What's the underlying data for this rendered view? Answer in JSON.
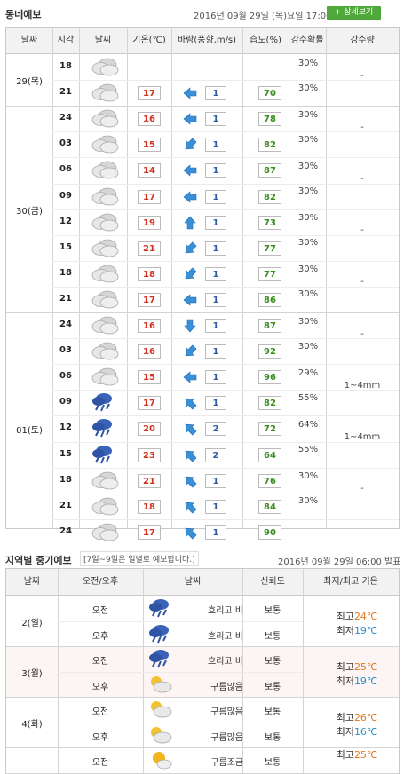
{
  "short_forecast": {
    "title": "동네예보",
    "issued": "2016년 09월 29일 (목)요일 17:00 발표",
    "detail_button": "+ 상세보기",
    "headers": [
      "날짜",
      "시각",
      "날씨",
      "기온(℃)",
      "바람(풍향,m/s)",
      "습도(%)",
      "강수확률",
      "강수량"
    ],
    "dates": [
      {
        "label": "29(목)",
        "rows": 2
      },
      {
        "label": "30(금)",
        "rows": 8
      },
      {
        "label": "01(토)",
        "rows": 9
      }
    ],
    "rows": [
      {
        "time": "18",
        "icon": "cloudy-icon",
        "temp": "",
        "dir": "",
        "wind": "",
        "hum": ""
      },
      {
        "time": "21",
        "icon": "cloudy-icon",
        "temp": "17",
        "dir": "left",
        "wind": "1",
        "hum": "70"
      },
      {
        "time": "24",
        "icon": "cloudy-icon",
        "temp": "16",
        "dir": "left",
        "wind": "1",
        "hum": "78"
      },
      {
        "time": "03",
        "icon": "cloudy-icon",
        "temp": "15",
        "dir": "downleft",
        "wind": "1",
        "hum": "82"
      },
      {
        "time": "06",
        "icon": "cloudy-icon",
        "temp": "14",
        "dir": "left",
        "wind": "1",
        "hum": "87"
      },
      {
        "time": "09",
        "icon": "cloudy-icon",
        "temp": "17",
        "dir": "left",
        "wind": "1",
        "hum": "82"
      },
      {
        "time": "12",
        "icon": "cloudy-icon",
        "temp": "19",
        "dir": "up",
        "wind": "1",
        "hum": "73"
      },
      {
        "time": "15",
        "icon": "cloudy-icon",
        "temp": "21",
        "dir": "downleft",
        "wind": "1",
        "hum": "77"
      },
      {
        "time": "18",
        "icon": "cloudy-icon",
        "temp": "18",
        "dir": "downleft",
        "wind": "1",
        "hum": "77"
      },
      {
        "time": "21",
        "icon": "cloudy-icon",
        "temp": "17",
        "dir": "left",
        "wind": "1",
        "hum": "86"
      },
      {
        "time": "24",
        "icon": "cloudy-icon",
        "temp": "16",
        "dir": "down",
        "wind": "1",
        "hum": "87"
      },
      {
        "time": "03",
        "icon": "cloudy-icon",
        "temp": "16",
        "dir": "downleft",
        "wind": "1",
        "hum": "92"
      },
      {
        "time": "06",
        "icon": "cloudy-icon",
        "temp": "15",
        "dir": "left",
        "wind": "1",
        "hum": "96"
      },
      {
        "time": "09",
        "icon": "rain-icon",
        "temp": "17",
        "dir": "upleft",
        "wind": "1",
        "hum": "82"
      },
      {
        "time": "12",
        "icon": "rain-icon",
        "temp": "20",
        "dir": "upleft",
        "wind": "2",
        "hum": "72"
      },
      {
        "time": "15",
        "icon": "rain-icon",
        "temp": "23",
        "dir": "upleft",
        "wind": "2",
        "hum": "64"
      },
      {
        "time": "18",
        "icon": "cloudy-icon",
        "temp": "21",
        "dir": "upleft",
        "wind": "1",
        "hum": "76"
      },
      {
        "time": "21",
        "icon": "cloudy-icon",
        "temp": "18",
        "dir": "upleft",
        "wind": "1",
        "hum": "84"
      },
      {
        "time": "24",
        "icon": "cloudy-icon",
        "temp": "17",
        "dir": "upleft",
        "wind": "1",
        "hum": "90"
      }
    ],
    "precip": [
      {
        "probs": [
          "30%",
          "30%"
        ],
        "amount": "-"
      },
      {
        "probs": [
          "30%",
          "30%"
        ],
        "amount": "-"
      },
      {
        "probs": [
          "30%",
          "30%"
        ],
        "amount": "-"
      },
      {
        "probs": [
          "30%",
          "30%"
        ],
        "amount": "-"
      },
      {
        "probs": [
          "30%",
          "30%"
        ],
        "amount": "-"
      },
      {
        "probs": [
          "30%",
          "30%"
        ],
        "amount": "-"
      },
      {
        "probs": [
          "29%",
          "55%"
        ],
        "amount": "1~4mm"
      },
      {
        "probs": [
          "64%",
          "55%"
        ],
        "amount": "1~4mm"
      },
      {
        "probs": [
          "30%",
          "30%"
        ],
        "amount": "-"
      }
    ]
  },
  "mid_forecast": {
    "title": "지역별 중기예보",
    "note": "[7일~9일은 일별로 예보합니다.]",
    "issued": "2016년 09월 29일 06:00 발표",
    "headers": [
      "날짜",
      "오전/오후",
      "날씨",
      "신뢰도",
      "최저/최고 기온"
    ],
    "days": [
      {
        "date": "2(일)",
        "high_label": "최고",
        "high": "24℃",
        "low_label": "최저",
        "low": "19℃",
        "slots": [
          {
            "period": "오전",
            "icon": "rain-icon",
            "weather": "흐리고 비",
            "reliability": "보통"
          },
          {
            "period": "오후",
            "icon": "rain-icon",
            "weather": "흐리고 비",
            "reliability": "보통"
          }
        ]
      },
      {
        "date": "3(월)",
        "high_label": "최고",
        "high": "25℃",
        "low_label": "최저",
        "low": "19℃",
        "slots": [
          {
            "period": "오전",
            "icon": "rain-icon",
            "weather": "흐리고 비",
            "reliability": "보통"
          },
          {
            "period": "오후",
            "icon": "partly-cloudy-icon",
            "weather": "구름많음",
            "reliability": "보통"
          }
        ]
      },
      {
        "date": "4(화)",
        "high_label": "최고",
        "high": "26℃",
        "low_label": "최저",
        "low": "16℃",
        "slots": [
          {
            "period": "오전",
            "icon": "partly-cloudy-icon",
            "weather": "구름많음",
            "reliability": "보통"
          },
          {
            "period": "오후",
            "icon": "partly-cloudy-icon",
            "weather": "구름많음",
            "reliability": "보통"
          }
        ]
      },
      {
        "date": "",
        "high_label": "최고",
        "high": "25℃",
        "low_label": "",
        "low": "",
        "slots": [
          {
            "period": "오전",
            "icon": "sun-cloud-icon",
            "weather": "구름조금",
            "reliability": "보통"
          }
        ]
      }
    ]
  }
}
